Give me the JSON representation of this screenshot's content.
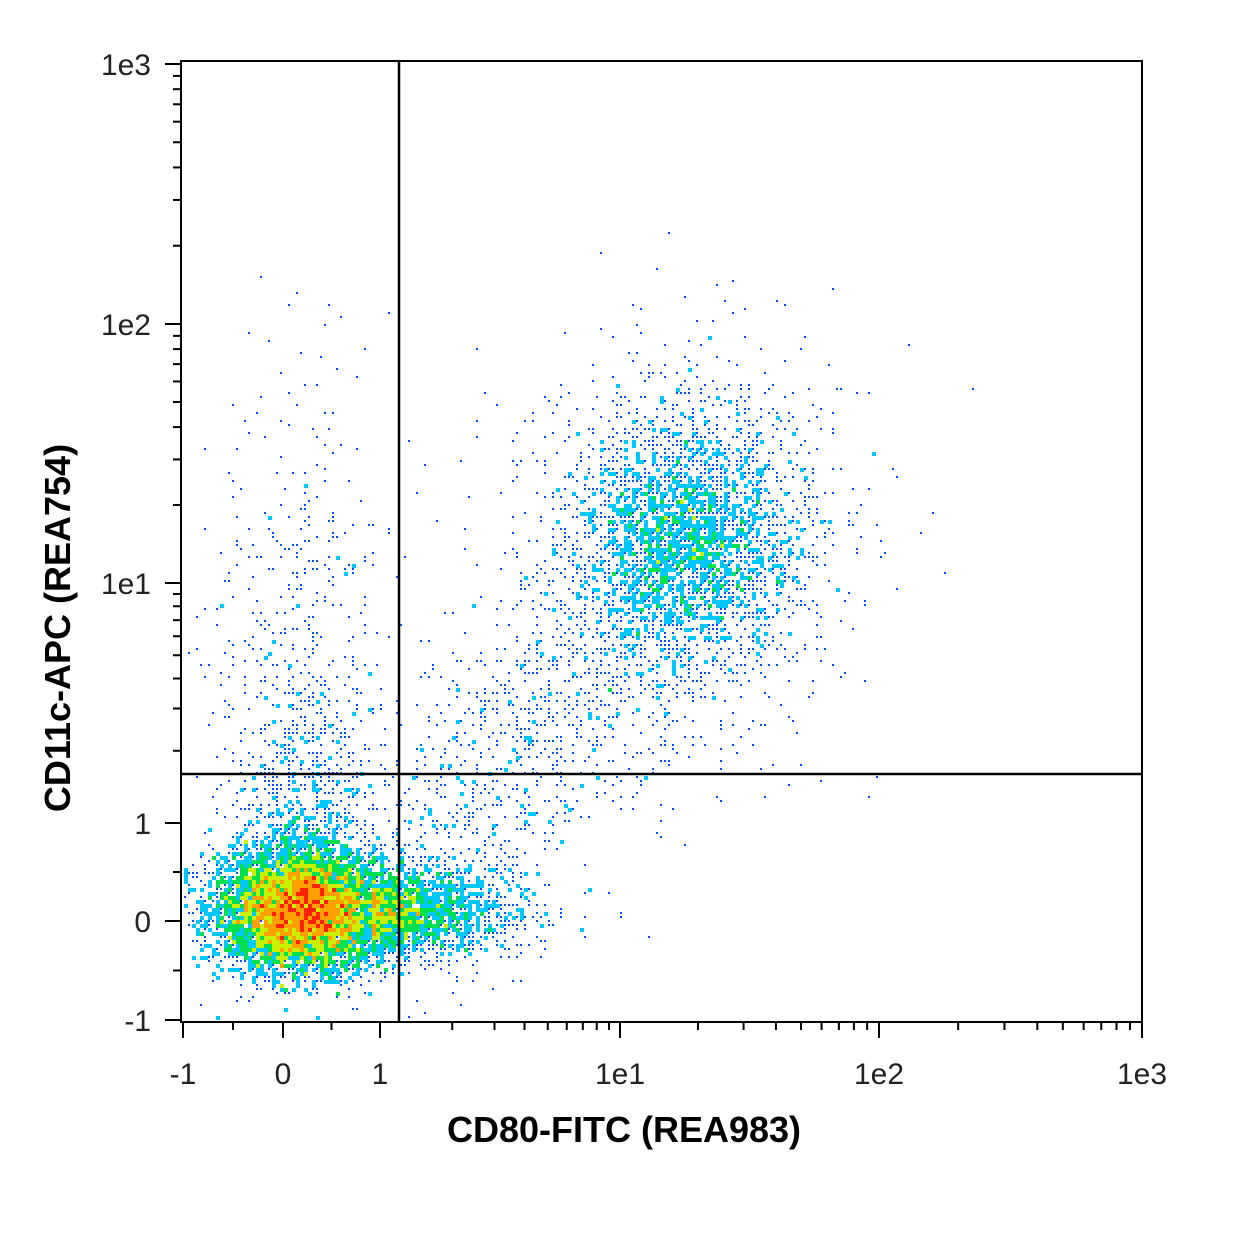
{
  "chart_data": {
    "type": "scatter",
    "subtype": "flow-cytometry-density-dot-plot",
    "xlabel": "CD80-FITC (REA983)",
    "ylabel": "CD11c-APC (REA754)",
    "x_scale": "biexponential",
    "y_scale": "biexponential",
    "xlim": [
      -1,
      1000
    ],
    "ylim": [
      -1,
      1000
    ],
    "x_ticks": [
      {
        "value": -1,
        "label": "-1"
      },
      {
        "value": 0,
        "label": "0"
      },
      {
        "value": 1,
        "label": "1"
      },
      {
        "value": 10,
        "label": "1e1"
      },
      {
        "value": 100,
        "label": "1e2"
      },
      {
        "value": 1000,
        "label": "1e3"
      }
    ],
    "y_ticks": [
      {
        "value": -1,
        "label": "-1"
      },
      {
        "value": 0,
        "label": "0"
      },
      {
        "value": 1,
        "label": "1"
      },
      {
        "value": 10,
        "label": "1e1"
      },
      {
        "value": 100,
        "label": "1e2"
      },
      {
        "value": 1000,
        "label": "1e3"
      }
    ],
    "quadrant_gate": {
      "x": 1.2,
      "y": 1.6
    },
    "populations": [
      {
        "description": "CD80- CD11c- cells (dense core)",
        "center_x": 0.2,
        "center_y": 0.1,
        "relative_size": "majority"
      },
      {
        "description": "CD80+ CD11c+ cells",
        "center_x": 15,
        "center_y": 15,
        "relative_size": "minor"
      },
      {
        "description": "CD80- CD11c+ sparse events",
        "center_x": 0.3,
        "center_y": 5,
        "relative_size": "sparse"
      }
    ],
    "density_colormap": [
      "#1a00c8",
      "#0050ff",
      "#00c8ff",
      "#00e050",
      "#c8f000",
      "#ffa000",
      "#ff2000"
    ],
    "grid": false,
    "legend": "none"
  }
}
